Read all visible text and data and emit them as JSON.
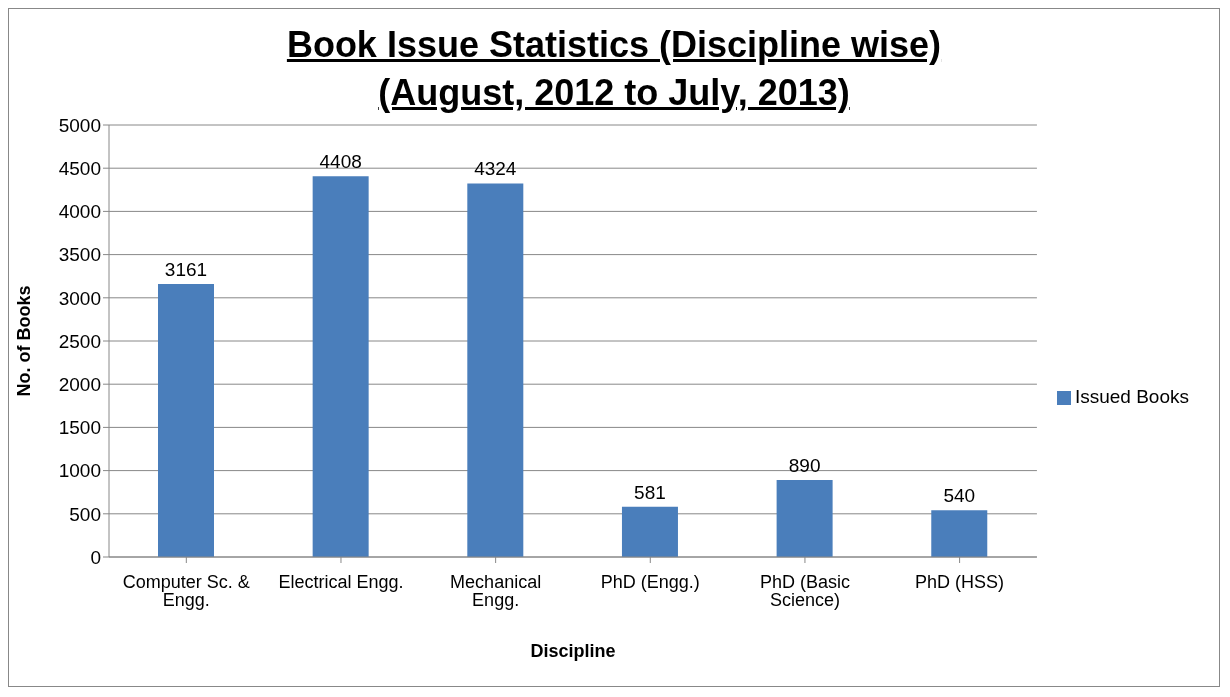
{
  "chart_data": {
    "type": "bar",
    "title": "Book Issue Statistics (Discipline wise) (August, 2012 to July, 2013)",
    "xlabel": "Discipline",
    "ylabel": "No. of Books",
    "categories": [
      "Computer Sc. & Engg.",
      "Electrical Engg.",
      "Mechanical Engg.",
      "PhD (Engg.)",
      "PhD  (Basic Science)",
      "PhD (HSS)"
    ],
    "series": [
      {
        "name": "Issued Books",
        "color": "#4a7ebb",
        "values": [
          3161,
          4408,
          4324,
          581,
          890,
          540
        ]
      }
    ],
    "ylim": [
      0,
      5000
    ],
    "yticks": [
      0,
      500,
      1000,
      1500,
      2000,
      2500,
      3000,
      3500,
      4000,
      4500,
      5000
    ],
    "grid": "y",
    "legend": "right",
    "data_labels": true
  }
}
